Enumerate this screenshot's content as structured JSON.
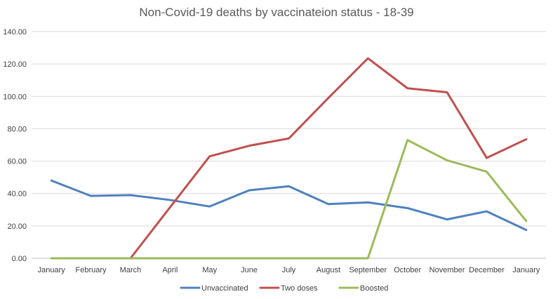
{
  "chart_data": {
    "type": "line",
    "title": "Non-Covid-19 deaths by vaccinateion status - 18-39",
    "xlabel": "",
    "ylabel": "",
    "categories": [
      "January",
      "February",
      "March",
      "April",
      "May",
      "June",
      "July",
      "August",
      "September",
      "October",
      "November",
      "December",
      "January"
    ],
    "ylim": [
      0,
      140
    ],
    "yticks": [
      "0.00",
      "20.00",
      "40.00",
      "60.00",
      "80.00",
      "100.00",
      "120.00",
      "140.00"
    ],
    "grid": true,
    "legend_position": "bottom",
    "series": [
      {
        "name": "Unvaccinated",
        "color": "#4f81bd",
        "values": [
          48,
          38.5,
          39,
          36,
          32,
          42,
          44.5,
          33.5,
          34.5,
          31,
          24,
          29,
          17.5
        ]
      },
      {
        "name": "Two doses",
        "color": "#c0504d",
        "values": [
          null,
          null,
          0,
          31.5,
          63,
          69.5,
          74,
          99,
          123.5,
          105,
          102.5,
          62,
          73.5
        ]
      },
      {
        "name": "Boosted",
        "color": "#9bbb59",
        "values": [
          0,
          0,
          0,
          0,
          0,
          0,
          0,
          0,
          0,
          73,
          60.5,
          53.5,
          23
        ]
      }
    ]
  }
}
